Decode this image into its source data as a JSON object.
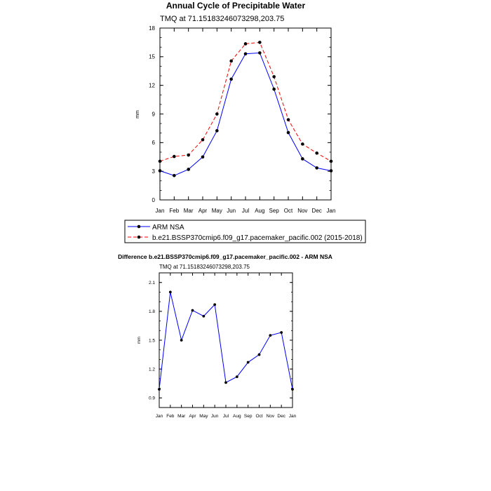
{
  "chart_data": [
    {
      "type": "line",
      "title": "Annual Cycle of Precipitable Water",
      "subtitle": "TMQ at 71.15183246073298,203.75",
      "xlabel": "",
      "ylabel": "mm",
      "categories": [
        "Jan",
        "Feb",
        "Mar",
        "Apr",
        "May",
        "Jun",
        "Jul",
        "Aug",
        "Sep",
        "Oct",
        "Nov",
        "Dec",
        "Jan"
      ],
      "ylim": [
        0,
        18
      ],
      "yticks": [
        "0",
        "3",
        "6",
        "9",
        "12",
        "15",
        "18"
      ],
      "series": [
        {
          "name": "ARM NSA",
          "color": "#0000ff",
          "style": "solid",
          "values": [
            3.05,
            2.55,
            3.2,
            4.5,
            7.25,
            12.65,
            15.3,
            15.4,
            11.6,
            7.05,
            4.3,
            3.35,
            3.05
          ]
        },
        {
          "name": "b.e21.BSSP370cmip6.f09_g17.pacemaker_pacific.002 (2015-2018)",
          "color": "#ff0000",
          "style": "dashed",
          "values": [
            4.05,
            4.55,
            4.7,
            6.3,
            9.0,
            14.55,
            16.35,
            16.5,
            12.9,
            8.4,
            5.85,
            4.9,
            4.05
          ]
        }
      ],
      "legend": "bottom"
    },
    {
      "type": "line",
      "title": "Difference b.e21.BSSP370cmip6.f09_g17.pacemaker_pacific.002 - ARM NSA",
      "subtitle": "TMQ at 71.15183246073298,203.75",
      "xlabel": "",
      "ylabel": "mm",
      "categories": [
        "Jan",
        "Feb",
        "Mar",
        "Apr",
        "May",
        "Jun",
        "Jul",
        "Aug",
        "Sep",
        "Oct",
        "Nov",
        "Dec",
        "Jan"
      ],
      "ylim": [
        0.8,
        2.2
      ],
      "yticks": [
        "0.9",
        "1.2",
        "1.5",
        "1.8",
        "2.1"
      ],
      "series": [
        {
          "name": "Difference",
          "color": "#0000ff",
          "style": "solid",
          "values": [
            0.99,
            2.0,
            1.5,
            1.81,
            1.75,
            1.87,
            1.06,
            1.12,
            1.27,
            1.35,
            1.55,
            1.58,
            0.99
          ]
        }
      ]
    }
  ]
}
